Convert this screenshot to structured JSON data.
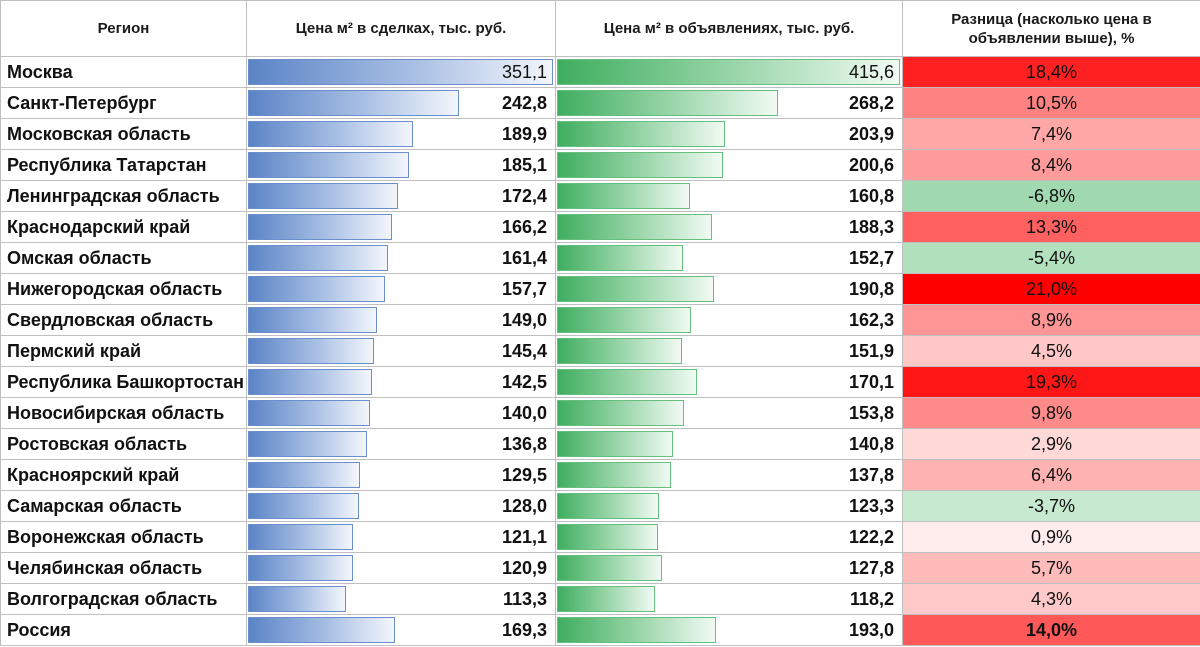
{
  "headers": {
    "region": "Регион",
    "deal_price": "Цена м² в сделках, тыс. руб.",
    "ad_price": "Цена м² в объявлениях, тыс. руб.",
    "diff": "Разница (насколько цена в объявлении выше), %"
  },
  "colors": {
    "deal_bar": "#5b84c6",
    "ad_bar": "#3fae5f",
    "diff_positive": "#ff0000",
    "diff_negative": "#63be7b"
  },
  "chart_data": {
    "type": "table",
    "max_deal": 351.1,
    "max_ad": 415.6,
    "max_diff": 21.0,
    "rows": [
      {
        "region": "Москва",
        "deal": 351.1,
        "deal_label": "351,1",
        "ad": 415.6,
        "ad_label": "415,6",
        "diff": 18.4,
        "diff_label": "18,4%"
      },
      {
        "region": "Санкт-Петербург",
        "deal": 242.8,
        "deal_label": "242,8",
        "ad": 268.2,
        "ad_label": "268,2",
        "diff": 10.5,
        "diff_label": "10,5%"
      },
      {
        "region": "Московская область",
        "deal": 189.9,
        "deal_label": "189,9",
        "ad": 203.9,
        "ad_label": "203,9",
        "diff": 7.4,
        "diff_label": "7,4%"
      },
      {
        "region": "Республика Татарстан",
        "deal": 185.1,
        "deal_label": "185,1",
        "ad": 200.6,
        "ad_label": "200,6",
        "diff": 8.4,
        "diff_label": "8,4%"
      },
      {
        "region": "Ленинградская область",
        "deal": 172.4,
        "deal_label": "172,4",
        "ad": 160.8,
        "ad_label": "160,8",
        "diff": -6.8,
        "diff_label": "-6,8%"
      },
      {
        "region": "Краснодарский край",
        "deal": 166.2,
        "deal_label": "166,2",
        "ad": 188.3,
        "ad_label": "188,3",
        "diff": 13.3,
        "diff_label": "13,3%"
      },
      {
        "region": "Омская область",
        "deal": 161.4,
        "deal_label": "161,4",
        "ad": 152.7,
        "ad_label": "152,7",
        "diff": -5.4,
        "diff_label": "-5,4%"
      },
      {
        "region": "Нижегородская область",
        "deal": 157.7,
        "deal_label": "157,7",
        "ad": 190.8,
        "ad_label": "190,8",
        "diff": 21.0,
        "diff_label": "21,0%"
      },
      {
        "region": "Свердловская область",
        "deal": 149.0,
        "deal_label": "149,0",
        "ad": 162.3,
        "ad_label": "162,3",
        "diff": 8.9,
        "diff_label": "8,9%"
      },
      {
        "region": "Пермский край",
        "deal": 145.4,
        "deal_label": "145,4",
        "ad": 151.9,
        "ad_label": "151,9",
        "diff": 4.5,
        "diff_label": "4,5%"
      },
      {
        "region": "Республика Башкортостан",
        "deal": 142.5,
        "deal_label": "142,5",
        "ad": 170.1,
        "ad_label": "170,1",
        "diff": 19.3,
        "diff_label": "19,3%"
      },
      {
        "region": "Новосибирская область",
        "deal": 140.0,
        "deal_label": "140,0",
        "ad": 153.8,
        "ad_label": "153,8",
        "diff": 9.8,
        "diff_label": "9,8%"
      },
      {
        "region": "Ростовская область",
        "deal": 136.8,
        "deal_label": "136,8",
        "ad": 140.8,
        "ad_label": "140,8",
        "diff": 2.9,
        "diff_label": "2,9%"
      },
      {
        "region": "Красноярский край",
        "deal": 129.5,
        "deal_label": "129,5",
        "ad": 137.8,
        "ad_label": "137,8",
        "diff": 6.4,
        "diff_label": "6,4%"
      },
      {
        "region": "Самарская область",
        "deal": 128.0,
        "deal_label": "128,0",
        "ad": 123.3,
        "ad_label": "123,3",
        "diff": -3.7,
        "diff_label": "-3,7%"
      },
      {
        "region": "Воронежская область",
        "deal": 121.1,
        "deal_label": "121,1",
        "ad": 122.2,
        "ad_label": "122,2",
        "diff": 0.9,
        "diff_label": "0,9%"
      },
      {
        "region": "Челябинская область",
        "deal": 120.9,
        "deal_label": "120,9",
        "ad": 127.8,
        "ad_label": "127,8",
        "diff": 5.7,
        "diff_label": "5,7%"
      },
      {
        "region": "Волгоградская область",
        "deal": 113.3,
        "deal_label": "113,3",
        "ad": 118.2,
        "ad_label": "118,2",
        "diff": 4.3,
        "diff_label": "4,3%"
      },
      {
        "region": "Россия",
        "deal": 169.3,
        "deal_label": "169,3",
        "ad": 193.0,
        "ad_label": "193,0",
        "diff": 14.0,
        "diff_label": "14,0%",
        "total": true
      }
    ]
  }
}
